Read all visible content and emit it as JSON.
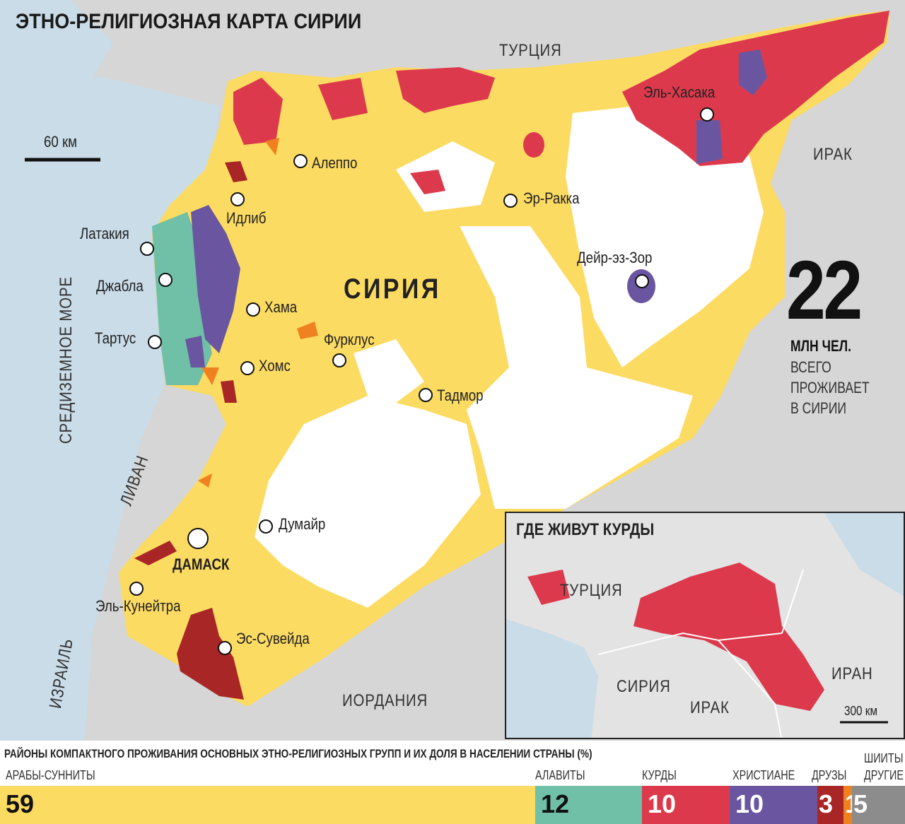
{
  "title": "ЭТНО-РЕЛИГИОЗНАЯ КАРТА СИРИИ",
  "scale": {
    "label": "60 км"
  },
  "countries": {
    "turkey": "ТУРЦИЯ",
    "iraq": "ИРАК",
    "syria": "СИРИЯ",
    "lebanon": "ЛИВАН",
    "israel": "ИЗРАИЛЬ",
    "jordan": "ИОРДАНИЯ",
    "sea": "СРЕДИЗЕМНОЕ МОРЕ"
  },
  "cities": [
    {
      "name": "Алеппо"
    },
    {
      "name": "Идлиб"
    },
    {
      "name": "Латакия"
    },
    {
      "name": "Джабла"
    },
    {
      "name": "Тартус"
    },
    {
      "name": "Хама"
    },
    {
      "name": "Хомс"
    },
    {
      "name": "Фурклус"
    },
    {
      "name": "Тадмор"
    },
    {
      "name": "Эр-Ракка"
    },
    {
      "name": "Дейр-эз-Зор"
    },
    {
      "name": "Эль-Хасака"
    },
    {
      "name": "Думайр"
    },
    {
      "name": "ДАМАСК"
    },
    {
      "name": "Эль-Кунейтра"
    },
    {
      "name": "Эс-Сувейда"
    }
  ],
  "population": {
    "value": "22",
    "unit": "МЛН ЧЕЛ.",
    "line1": "ВСЕГО",
    "line2": "ПРОЖИВАЕТ",
    "line3": "В СИРИИ"
  },
  "inset": {
    "title": "ГДЕ ЖИВУТ КУРДЫ",
    "turkey": "ТУРЦИЯ",
    "syria": "СИРИЯ",
    "iraq": "ИРАК",
    "iran": "ИРАН",
    "scale": "300 км"
  },
  "legend": {
    "title": "РАЙОНЫ КОМПАКТНОГО ПРОЖИВАНИЯ ОСНОВНЫХ ЭТНО-РЕЛИГИОЗНЫХ ГРУПП И ИХ ДОЛЯ В НАСЕЛЕНИИ СТРАНЫ (%)",
    "groups": [
      {
        "name": "АРАБЫ-СУННИТЫ",
        "value": "59",
        "percent": 59,
        "color": "#fcdb62"
      },
      {
        "name": "АЛАВИТЫ",
        "value": "12",
        "percent": 12,
        "color": "#6fc0a6"
      },
      {
        "name": "КУРДЫ",
        "value": "10",
        "percent": 10,
        "color": "#dc3a4c"
      },
      {
        "name": "ХРИСТИАНЕ",
        "value": "10",
        "percent": 10,
        "color": "#6a56a0"
      },
      {
        "name": "ДРУЗЫ",
        "value": "3",
        "percent": 3,
        "color": "#a82626"
      },
      {
        "name": "ШИИТЫ",
        "value": "1",
        "percent": 1,
        "color": "#f08121"
      },
      {
        "name": "ДРУГИЕ",
        "value": "5",
        "percent": 5,
        "color": "#8c8c8c"
      }
    ]
  }
}
